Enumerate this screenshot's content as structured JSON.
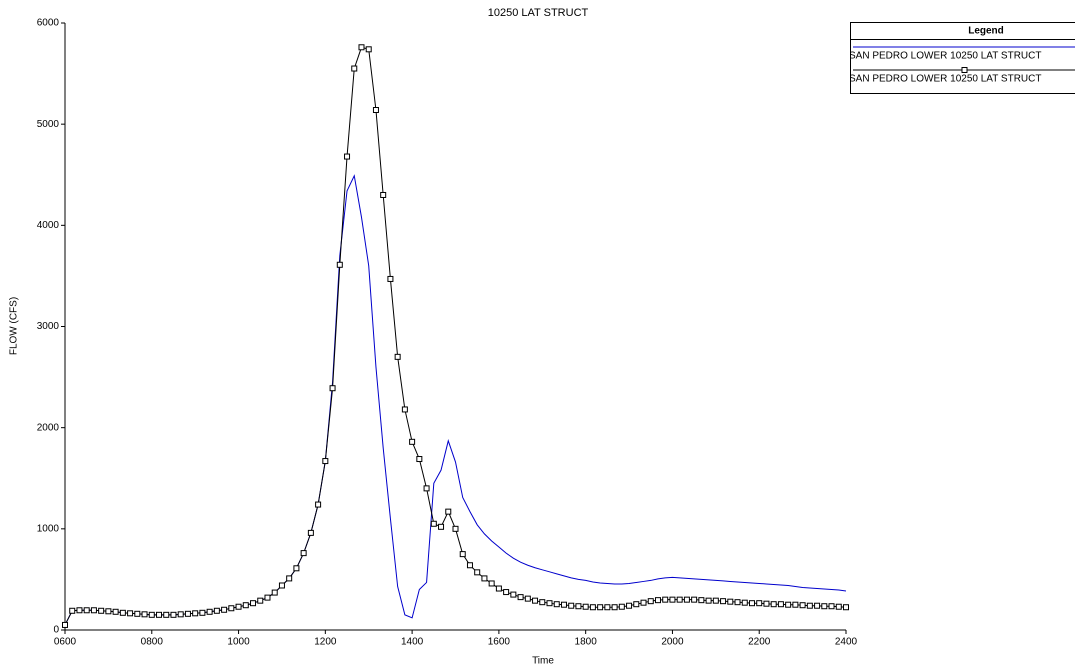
{
  "chart_data": {
    "type": "line",
    "title": "10250 LAT STRUCT",
    "x_label": "Time",
    "y_label": "FLOW (CFS)",
    "legend_title": "Legend",
    "legend": "top-right",
    "grid": false,
    "x": [
      360,
      370,
      380,
      390,
      400,
      410,
      420,
      430,
      440,
      450,
      460,
      470,
      480,
      490,
      500,
      510,
      520,
      530,
      540,
      550,
      560,
      570,
      580,
      590,
      600,
      610,
      620,
      630,
      640,
      650,
      660,
      670,
      680,
      690,
      700,
      710,
      720,
      730,
      740,
      750,
      760,
      770,
      780,
      790,
      800,
      810,
      820,
      830,
      840,
      850,
      860,
      870,
      880,
      890,
      900,
      910,
      920,
      930,
      940,
      950,
      960,
      970,
      980,
      990,
      1000,
      1010,
      1020,
      1030,
      1040,
      1050,
      1060,
      1070,
      1080,
      1090,
      1100,
      1110,
      1120,
      1130,
      1140,
      1150,
      1160,
      1170,
      1180,
      1190,
      1200,
      1210,
      1220,
      1230,
      1240,
      1250,
      1260,
      1270,
      1280,
      1290,
      1300,
      1310,
      1320,
      1330,
      1340,
      1350,
      1360,
      1370,
      1380,
      1390,
      1400,
      1410,
      1420,
      1430,
      1440
    ],
    "xlim": [
      360,
      1440
    ],
    "xticks": [
      {
        "value": 360,
        "label": "0600"
      },
      {
        "value": 480,
        "label": "0800"
      },
      {
        "value": 600,
        "label": "1000"
      },
      {
        "value": 720,
        "label": "1200"
      },
      {
        "value": 840,
        "label": "1400"
      },
      {
        "value": 960,
        "label": "1600"
      },
      {
        "value": 1080,
        "label": "1800"
      },
      {
        "value": 1200,
        "label": "2000"
      },
      {
        "value": 1320,
        "label": "2200"
      },
      {
        "value": 1440,
        "label": "2400"
      }
    ],
    "ylim": [
      0,
      6000
    ],
    "yticks": [
      0,
      1000,
      2000,
      3000,
      4000,
      5000,
      6000
    ],
    "series": [
      {
        "name": "SAN PEDRO LOWER 10250 LAT STRUCT",
        "color": "#0000cc",
        "marker": "none",
        "values": [
          50,
          190,
          195,
          195,
          195,
          190,
          185,
          180,
          170,
          165,
          160,
          155,
          150,
          150,
          150,
          150,
          155,
          160,
          165,
          170,
          180,
          190,
          200,
          215,
          230,
          245,
          265,
          290,
          320,
          370,
          440,
          510,
          610,
          760,
          960,
          1240,
          1670,
          2450,
          3700,
          4340,
          4490,
          4080,
          3600,
          2600,
          1800,
          1100,
          430,
          150,
          120,
          400,
          470,
          1450,
          1580,
          1870,
          1660,
          1310,
          1170,
          1040,
          950,
          880,
          820,
          760,
          710,
          670,
          640,
          615,
          595,
          575,
          555,
          535,
          515,
          500,
          490,
          475,
          465,
          460,
          455,
          455,
          460,
          470,
          480,
          490,
          505,
          515,
          520,
          515,
          510,
          505,
          500,
          495,
          490,
          485,
          480,
          475,
          470,
          465,
          460,
          455,
          450,
          445,
          440,
          430,
          420,
          415,
          410,
          405,
          400,
          395,
          385
        ]
      },
      {
        "name": "SAN PEDRO LOWER 10250 LAT STRUCT",
        "color": "#000000",
        "marker": "square",
        "values": [
          50,
          190,
          195,
          195,
          195,
          190,
          185,
          180,
          170,
          165,
          160,
          155,
          150,
          150,
          150,
          150,
          155,
          160,
          165,
          170,
          180,
          190,
          200,
          215,
          230,
          245,
          265,
          290,
          320,
          370,
          440,
          510,
          610,
          760,
          960,
          1240,
          1670,
          2390,
          3610,
          4680,
          5550,
          5760,
          5740,
          5140,
          4300,
          3470,
          2700,
          2180,
          1860,
          1690,
          1400,
          1050,
          1020,
          1170,
          1000,
          750,
          640,
          570,
          510,
          460,
          410,
          375,
          350,
          325,
          310,
          290,
          275,
          265,
          255,
          250,
          240,
          235,
          230,
          225,
          225,
          225,
          225,
          230,
          240,
          255,
          270,
          285,
          295,
          300,
          300,
          300,
          300,
          300,
          295,
          290,
          290,
          285,
          280,
          275,
          270,
          265,
          265,
          260,
          255,
          255,
          250,
          250,
          245,
          240,
          240,
          235,
          235,
          230,
          225
        ]
      }
    ]
  }
}
